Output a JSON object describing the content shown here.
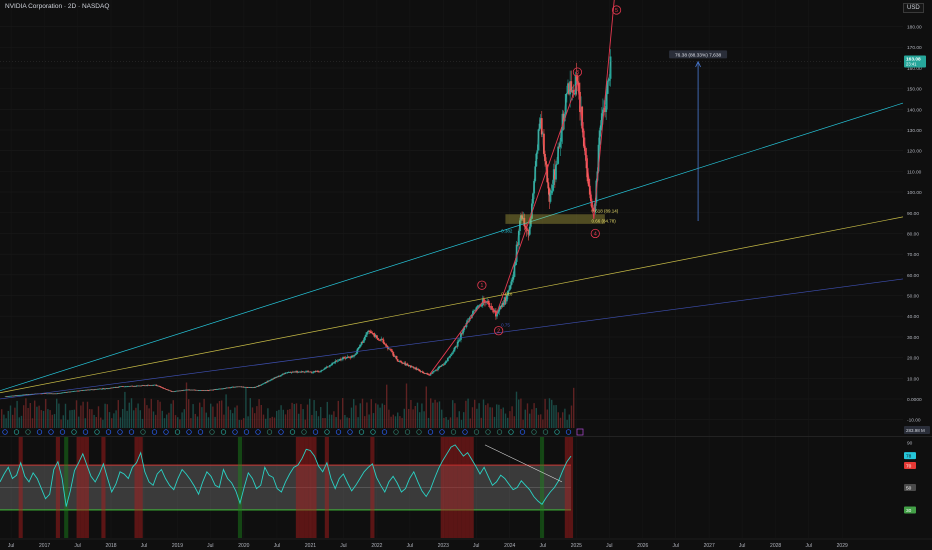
{
  "header": {
    "title": "NVIDIA Corporation · 2D · NASDAQ",
    "currency": "USD"
  },
  "price_badge": {
    "value": "163.08",
    "countdown": "23:41"
  },
  "measure_label": "76.38 (88.33%) 7,638",
  "elliott_labels": [
    "1",
    "2",
    "3",
    "4",
    "5"
  ],
  "fib_labels": {
    "rect_top": "0.618 (89.14)",
    "rect_bottom": "0.66 (84.78)",
    "cyan": "0.382",
    "yellow": "0.618",
    "blue": "0.75"
  },
  "colors": {
    "up": "#26a69a",
    "down": "#ef5350",
    "cyan": "#26c6da",
    "yellow": "#c9bd47",
    "blue": "#3f51b5",
    "wave": "#e53950"
  },
  "rsi": {
    "upper_label": "70",
    "upper_value_label": "78",
    "mid_label": "50",
    "lower_label": "30",
    "top_tick": "90"
  },
  "volume_scale_label": "283.98 M",
  "chart_data": {
    "type": "line",
    "title": "NVIDIA Corporation · 2D · NASDAQ",
    "y_axis": {
      "ticks": [
        -10,
        0,
        10,
        20,
        30,
        40,
        50,
        60,
        70,
        80,
        90,
        100,
        110,
        120,
        130,
        140,
        150,
        160,
        170,
        180
      ],
      "tick_labels": [
        "-10.00",
        "0.0000",
        "10.00",
        "20.00",
        "30.00",
        "40.00",
        "50.00",
        "60.00",
        "70.00",
        "80.00",
        "90.00",
        "100.00",
        "110.00",
        "120.00",
        "130.00",
        "140.00",
        "150.00",
        "160.00",
        "170.00",
        "180.00"
      ],
      "range": [
        -15,
        188
      ]
    },
    "x_axis": {
      "labels": [
        "Jul",
        "2017",
        "Jul",
        "2018",
        "Jul",
        "2019",
        "Jul",
        "2020",
        "Jul",
        "2021",
        "Jul",
        "2022",
        "Jul",
        "2023",
        "Jul",
        "2024",
        "Jul",
        "2025",
        "Jul",
        "2026",
        "Jul",
        "2027",
        "Jul",
        "2028",
        "Jul",
        "2029"
      ],
      "range": [
        "2016-05-01",
        "2029-12-01"
      ]
    },
    "series": [
      {
        "type": "price",
        "x": [
          "2016-06-01",
          "2016-09-01",
          "2016-12-01",
          "2017-03-01",
          "2017-06-01",
          "2017-09-01",
          "2017-12-01",
          "2018-03-01",
          "2018-06-01",
          "2018-09-01",
          "2018-12-01",
          "2019-03-01",
          "2019-06-01",
          "2019-09-01",
          "2019-12-01",
          "2020-03-01",
          "2020-06-01",
          "2020-09-01",
          "2020-12-01",
          "2021-03-01",
          "2021-06-01",
          "2021-09-01",
          "2021-11-15",
          "2022-01-15",
          "2022-03-01",
          "2022-05-01",
          "2022-07-01",
          "2022-10-15",
          "2023-01-15",
          "2023-03-15",
          "2023-05-15",
          "2023-06-15",
          "2023-08-15",
          "2023-10-20",
          "2023-12-15",
          "2024-01-20",
          "2024-03-01",
          "2024-04-15",
          "2024-06-15",
          "2024-08-05",
          "2024-09-10",
          "2024-11-10",
          "2025-01-07",
          "2025-02-15",
          "2025-04-07",
          "2025-05-15",
          "2025-06-15",
          "2025-07-08"
        ],
        "y": [
          1.2,
          2.0,
          2.6,
          2.6,
          3.6,
          4.5,
          5.0,
          6.0,
          6.3,
          6.8,
          3.5,
          4.5,
          4.0,
          5.0,
          6.0,
          5.5,
          9.5,
          13.0,
          13.0,
          13.5,
          19.0,
          21.0,
          33.0,
          29.0,
          25.0,
          18.0,
          16.0,
          11.5,
          18.0,
          26.0,
          38.0,
          42.0,
          48.0,
          41.0,
          49.0,
          58.0,
          90.0,
          78.0,
          135.0,
          98.0,
          112.0,
          148.0,
          153.0,
          120.0,
          87.0,
          134.0,
          145.0,
          163.08
        ]
      },
      {
        "type": "rsi",
        "upper": 70,
        "lower": 30,
        "values": [
          55,
          62,
          68,
          58,
          61,
          72,
          60,
          55,
          63,
          58,
          49,
          40,
          44,
          66,
          73,
          58,
          33,
          47,
          65,
          72,
          80,
          70,
          60,
          55,
          62,
          71,
          58,
          46,
          53,
          64,
          62,
          58,
          68,
          72,
          81,
          64,
          55,
          52,
          62,
          66,
          58,
          52,
          48,
          58,
          66,
          62,
          57,
          51,
          44,
          55,
          64,
          60,
          52,
          50,
          66,
          58,
          54,
          47,
          36,
          50,
          63,
          58,
          49,
          52,
          68,
          61,
          59,
          49,
          46,
          55,
          62,
          68,
          70,
          76,
          84,
          83,
          78,
          69,
          64,
          72,
          58,
          49,
          58,
          62,
          54,
          47,
          52,
          58,
          64,
          68,
          71,
          59,
          52,
          46,
          55,
          60,
          54,
          46,
          49,
          58,
          64,
          55,
          47,
          42,
          48,
          58,
          67,
          74,
          80,
          86,
          88,
          83,
          78,
          81,
          75,
          69,
          62,
          68,
          60,
          52,
          55,
          61,
          58,
          53,
          48,
          50,
          56,
          52,
          48,
          42,
          38,
          35,
          41,
          46,
          50,
          56,
          65,
          73,
          78
        ]
      }
    ],
    "annotations": [
      "1",
      "2",
      "3",
      "4",
      "5",
      "0.618 (89.14)",
      "0.66 (84.78)",
      "0.382",
      "0.618",
      "0.75",
      "76.38 (88.33%) 7,638"
    ],
    "last_price": 163.08
  }
}
